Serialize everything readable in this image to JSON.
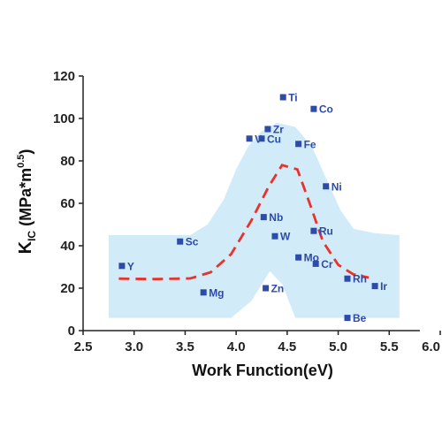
{
  "chart_data": {
    "type": "scatter",
    "xlabel": "Work Function(eV)",
    "ylabel": {
      "main": "K",
      "sub": "IC",
      "unit_open": " (MPa*m",
      "sup": "0.5",
      "unit_close": ")"
    },
    "xlim": [
      2.5,
      6.0
    ],
    "ylim": [
      0,
      120
    ],
    "x_ticks": [
      2.5,
      3.0,
      3.5,
      4.0,
      4.5,
      5.0,
      5.5,
      6.0
    ],
    "y_ticks": [
      0,
      20,
      40,
      60,
      80,
      100,
      120
    ],
    "grid": false,
    "legend": "none",
    "colors": {
      "point": "#2d4ba8",
      "trend": "#e8322b",
      "band": "#d2ebf8",
      "axis": "#222222"
    },
    "series": [
      {
        "points": [
          {
            "label": "Y",
            "x": 2.88,
            "y": 30.5
          },
          {
            "label": "Sc",
            "x": 3.45,
            "y": 42
          },
          {
            "label": "Mg",
            "x": 3.68,
            "y": 18
          },
          {
            "label": "Nb",
            "x": 4.27,
            "y": 53.5
          },
          {
            "label": "Zn",
            "x": 4.29,
            "y": 20
          },
          {
            "label": "W",
            "x": 4.38,
            "y": 44.5
          },
          {
            "label": "V",
            "x": 4.13,
            "y": 90.5
          },
          {
            "label": "Cu",
            "x": 4.25,
            "y": 90.5
          },
          {
            "label": "Zr",
            "x": 4.31,
            "y": 95
          },
          {
            "label": "Ti",
            "x": 4.46,
            "y": 110
          },
          {
            "label": "Mo",
            "x": 4.61,
            "y": 34.5
          },
          {
            "label": "Fe",
            "x": 4.61,
            "y": 88
          },
          {
            "label": "Co",
            "x": 4.76,
            "y": 104.5
          },
          {
            "label": "Ru",
            "x": 4.76,
            "y": 47
          },
          {
            "label": "Cr",
            "x": 4.78,
            "y": 31.5
          },
          {
            "label": "Ni",
            "x": 4.88,
            "y": 68
          },
          {
            "label": "Rh",
            "x": 5.09,
            "y": 24.5
          },
          {
            "label": "Be",
            "x": 5.09,
            "y": 6
          },
          {
            "label": "Ir",
            "x": 5.36,
            "y": 21
          }
        ]
      }
    ],
    "trend_line": {
      "style": "dashed",
      "points": [
        [
          2.85,
          24.5
        ],
        [
          3.2,
          24.3
        ],
        [
          3.55,
          24.6
        ],
        [
          3.75,
          27.5
        ],
        [
          3.95,
          36
        ],
        [
          4.15,
          52
        ],
        [
          4.32,
          68
        ],
        [
          4.45,
          78
        ],
        [
          4.6,
          76
        ],
        [
          4.72,
          60
        ],
        [
          4.85,
          42
        ],
        [
          5.0,
          31
        ],
        [
          5.15,
          26.5
        ],
        [
          5.3,
          25
        ]
      ]
    },
    "band": {
      "points": [
        [
          2.75,
          45
        ],
        [
          3.55,
          45
        ],
        [
          3.72,
          50
        ],
        [
          3.88,
          62
        ],
        [
          4.0,
          76
        ],
        [
          4.12,
          87
        ],
        [
          4.25,
          94
        ],
        [
          4.4,
          98
        ],
        [
          4.58,
          96
        ],
        [
          4.74,
          87
        ],
        [
          4.88,
          72
        ],
        [
          5.02,
          57
        ],
        [
          5.15,
          48
        ],
        [
          5.35,
          46
        ],
        [
          5.6,
          45
        ],
        [
          5.6,
          6
        ],
        [
          4.58,
          6
        ],
        [
          4.45,
          22
        ],
        [
          4.33,
          28
        ],
        [
          4.15,
          14
        ],
        [
          3.95,
          6
        ],
        [
          2.75,
          6
        ]
      ]
    }
  }
}
